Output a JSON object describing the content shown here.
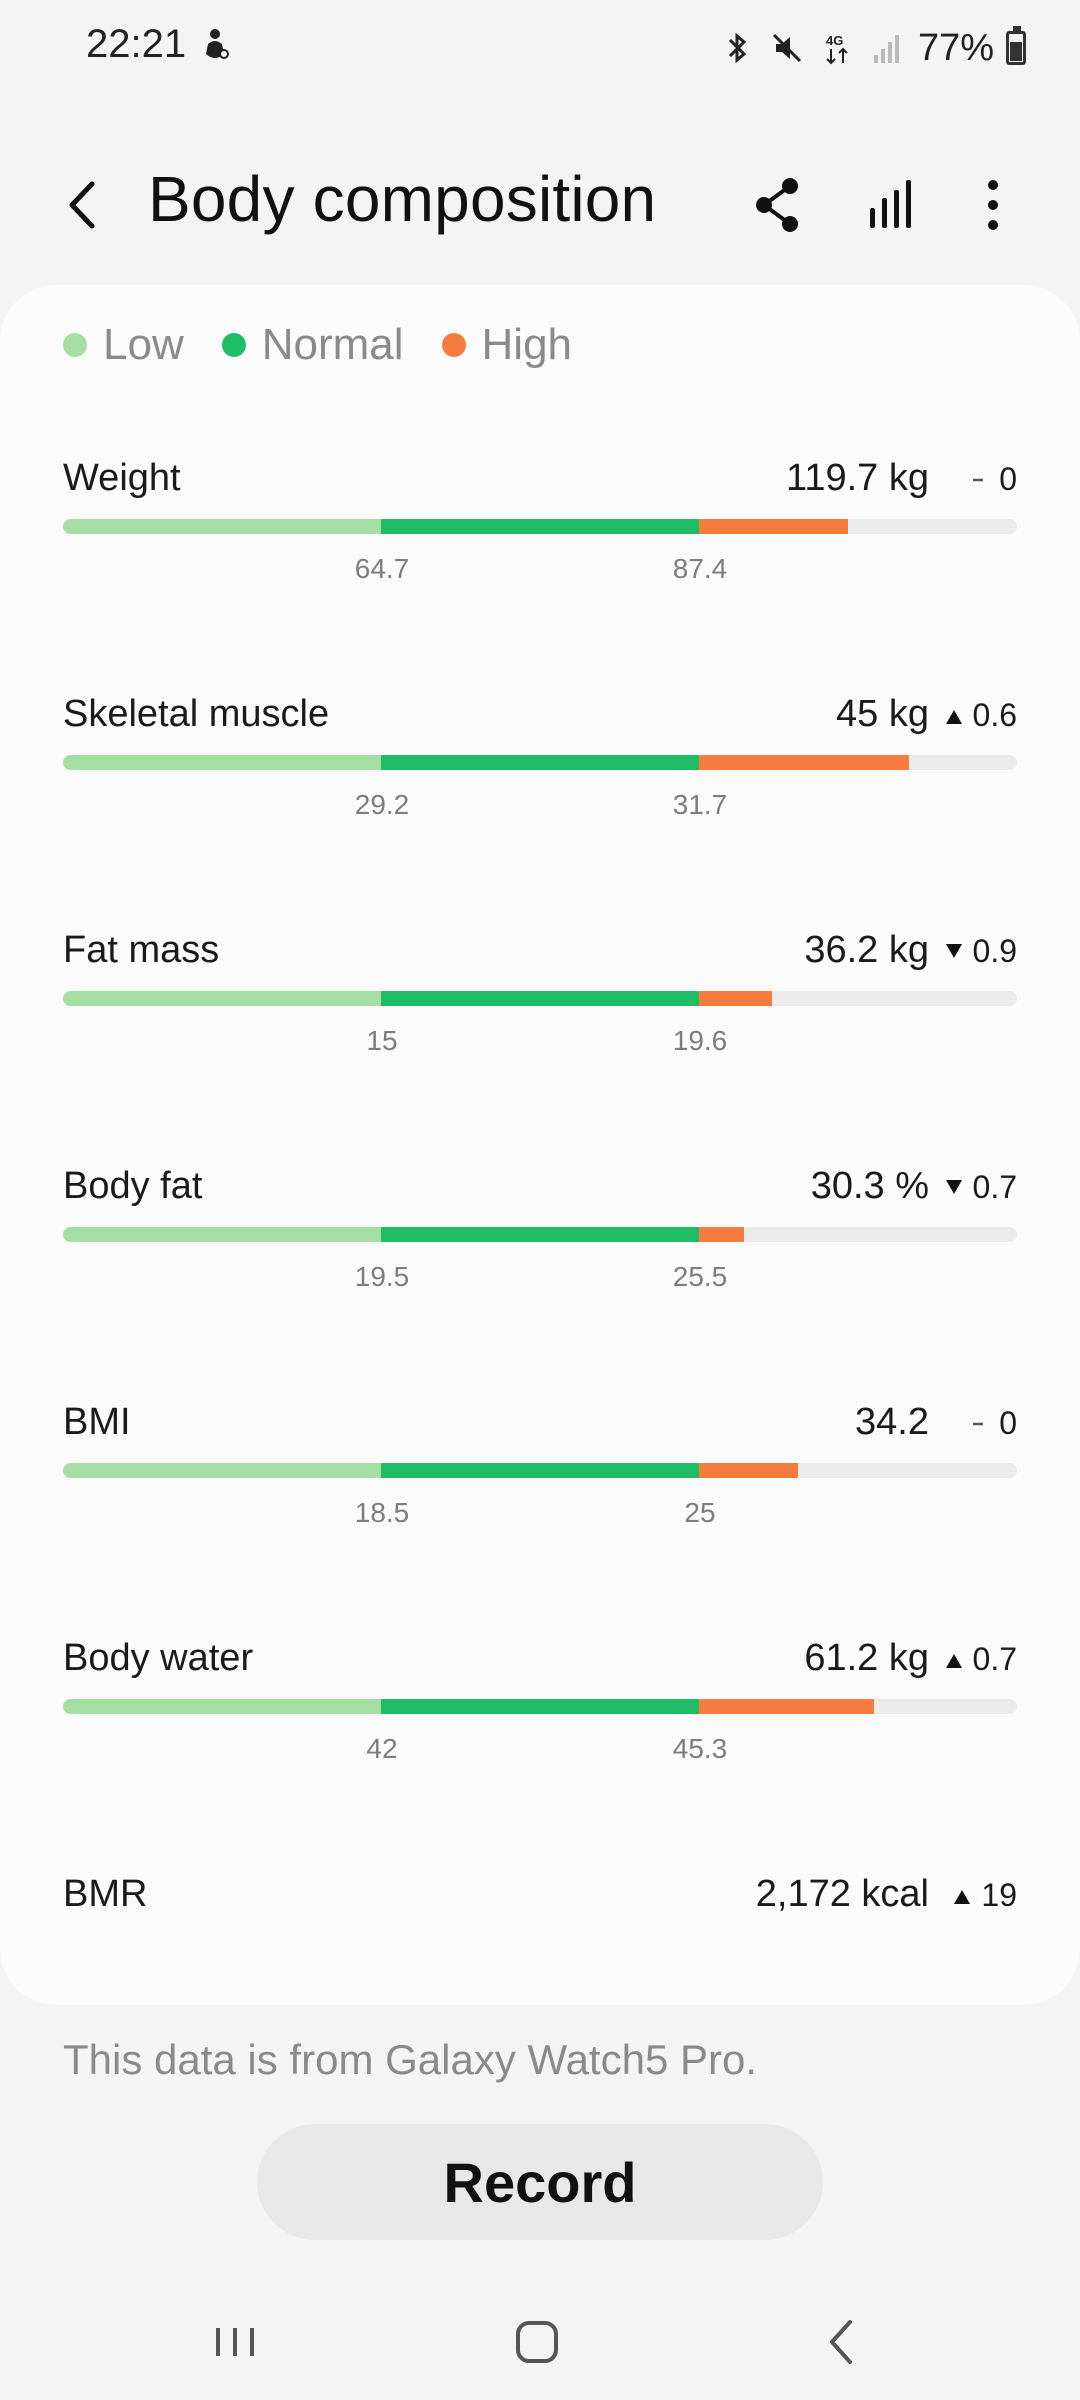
{
  "status": {
    "time": "22:21",
    "battery": "77%"
  },
  "header": {
    "title": "Body composition"
  },
  "legend": [
    {
      "label": "Low",
      "color": "#a6dfa3"
    },
    {
      "label": "Normal",
      "color": "#1fbe66"
    },
    {
      "label": "High",
      "color": "#f77b3f"
    }
  ],
  "metrics": [
    {
      "name": "Weight",
      "value": "119.7 kg",
      "change": "0",
      "direction": "none",
      "tick_low": "64.7",
      "tick_high": "87.4",
      "high_fill": 0.47
    },
    {
      "name": "Skeletal muscle",
      "value": "45 kg",
      "change": "0.6",
      "direction": "up",
      "tick_low": "29.2",
      "tick_high": "31.7",
      "high_fill": 0.66
    },
    {
      "name": "Fat mass",
      "value": "36.2 kg",
      "change": "0.9",
      "direction": "down",
      "tick_low": "15",
      "tick_high": "19.6",
      "high_fill": 0.23
    },
    {
      "name": "Body fat",
      "value": "30.3 %",
      "change": "0.7",
      "direction": "down",
      "tick_low": "19.5",
      "tick_high": "25.5",
      "high_fill": 0.14
    },
    {
      "name": "BMI",
      "value": "34.2",
      "change": "0",
      "direction": "none",
      "tick_low": "18.5",
      "tick_high": "25",
      "high_fill": 0.31
    },
    {
      "name": "Body water",
      "value": "61.2 kg",
      "change": "0.7",
      "direction": "up",
      "tick_low": "42",
      "tick_high": "45.3",
      "high_fill": 0.55
    }
  ],
  "bmr": {
    "name": "BMR",
    "value": "2,172 kcal",
    "change": "19",
    "direction": "up"
  },
  "source_note": "This data is from Galaxy Watch5 Pro.",
  "record_label": "Record"
}
